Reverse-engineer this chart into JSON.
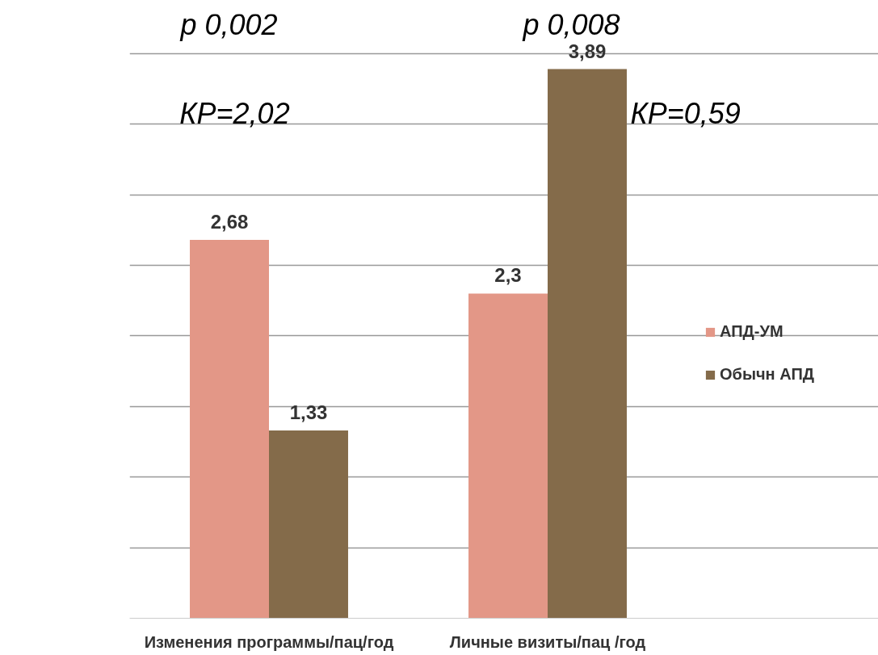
{
  "chart_data": {
    "type": "bar",
    "categories": [
      "Изменения программы/пац/год",
      "Личные визиты/пац /год"
    ],
    "series": [
      {
        "name": "АПД-УМ",
        "color": "#e39787",
        "values": [
          2.68,
          2.3
        ],
        "value_labels": [
          "2,68",
          "2,3"
        ]
      },
      {
        "name": "Обычн АПД",
        "color": "#846b4a",
        "values": [
          1.33,
          3.89
        ],
        "value_labels": [
          "1,33",
          "3,89"
        ]
      }
    ],
    "grid": "y",
    "legend": "right",
    "tick_labels": "x",
    "annotations": [
      "p 0,002",
      "КР=2,02",
      "p 0,008",
      "КР=0,59"
    ]
  }
}
